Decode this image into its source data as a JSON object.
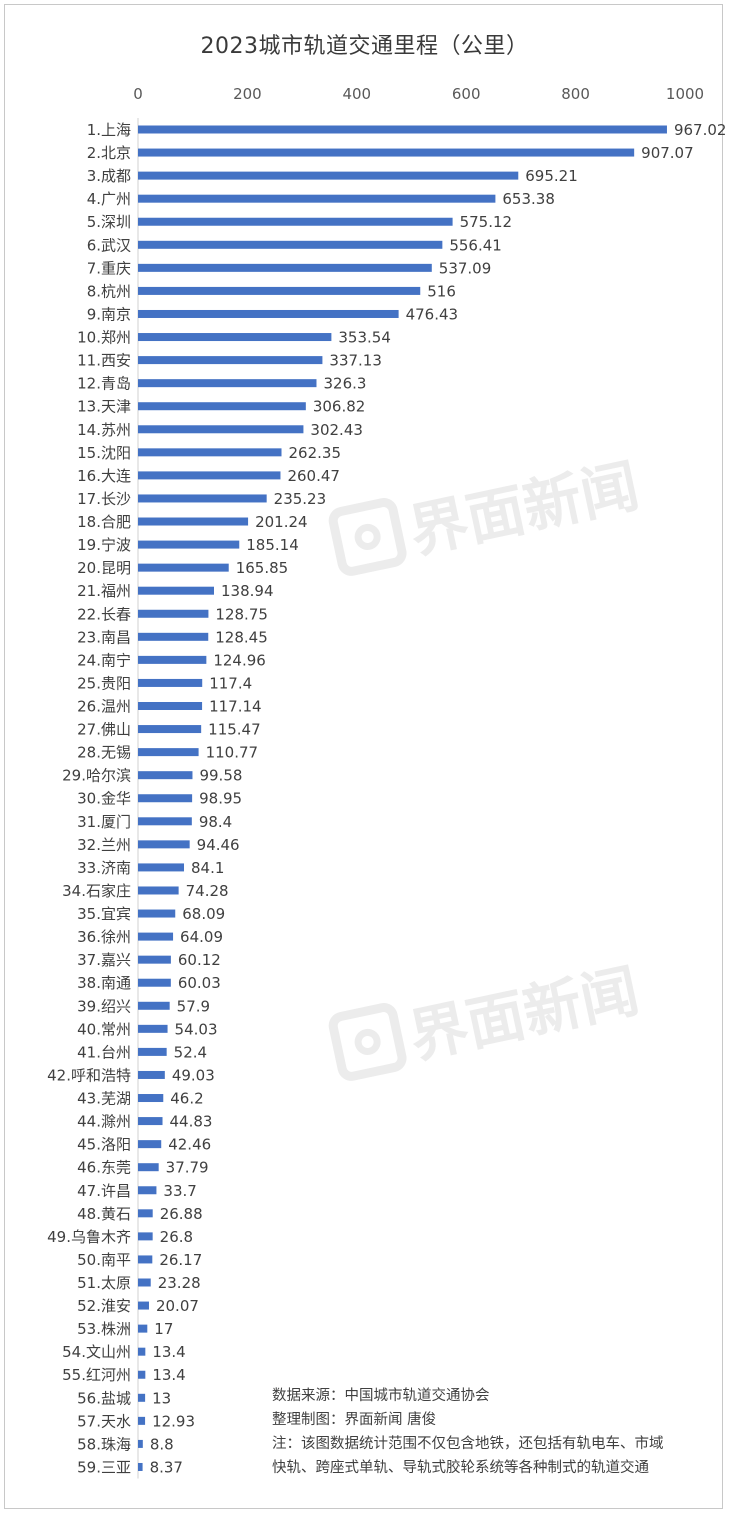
{
  "chart_data": {
    "type": "bar",
    "orientation": "horizontal",
    "title": "2023城市轨道交通里程（公里）",
    "xlim": [
      0,
      1000
    ],
    "xticks": [
      0,
      200,
      400,
      600,
      800,
      1000
    ],
    "axis_position": "top",
    "grid": false,
    "bar_color": "#4472C4",
    "categories": [
      "1.上海",
      "2.北京",
      "3.成都",
      "4.广州",
      "5.深圳",
      "6.武汉",
      "7.重庆",
      "8.杭州",
      "9.南京",
      "10.郑州",
      "11.西安",
      "12.青岛",
      "13.天津",
      "14.苏州",
      "15.沈阳",
      "16.大连",
      "17.长沙",
      "18.合肥",
      "19.宁波",
      "20.昆明",
      "21.福州",
      "22.长春",
      "23.南昌",
      "24.南宁",
      "25.贵阳",
      "26.温州",
      "27.佛山",
      "28.无锡",
      "29.哈尔滨",
      "30.金华",
      "31.厦门",
      "32.兰州",
      "33.济南",
      "34.石家庄",
      "35.宜宾",
      "36.徐州",
      "37.嘉兴",
      "38.南通",
      "39.绍兴",
      "40.常州",
      "41.台州",
      "42.呼和浩特",
      "43.芜湖",
      "44.滁州",
      "45.洛阳",
      "46.东莞",
      "47.许昌",
      "48.黄石",
      "49.乌鲁木齐",
      "50.南平",
      "51.太原",
      "52.淮安",
      "53.株洲",
      "54.文山州",
      "55.红河州",
      "56.盐城",
      "57.天水",
      "58.珠海",
      "59.三亚"
    ],
    "values": [
      967.02,
      907.07,
      695.21,
      653.38,
      575.12,
      556.41,
      537.09,
      516,
      476.43,
      353.54,
      337.13,
      326.3,
      306.82,
      302.43,
      262.35,
      260.47,
      235.23,
      201.24,
      185.14,
      165.85,
      138.94,
      128.75,
      128.45,
      124.96,
      117.4,
      117.14,
      115.47,
      110.77,
      99.58,
      98.95,
      98.4,
      94.46,
      84.1,
      74.28,
      68.09,
      64.09,
      60.12,
      60.03,
      57.9,
      54.03,
      52.4,
      49.03,
      46.2,
      44.83,
      42.46,
      37.79,
      33.7,
      26.88,
      26.8,
      26.17,
      23.28,
      20.07,
      17,
      13.4,
      13.4,
      13,
      12.93,
      8.8,
      8.37
    ],
    "data_labels": [
      "967.02",
      "907.07",
      "695.21",
      "653.38",
      "575.12",
      "556.41",
      "537.09",
      "516",
      "476.43",
      "353.54",
      "337.13",
      "326.3",
      "306.82",
      "302.43",
      "262.35",
      "260.47",
      "235.23",
      "201.24",
      "185.14",
      "165.85",
      "138.94",
      "128.75",
      "128.45",
      "124.96",
      "117.4",
      "117.14",
      "115.47",
      "110.77",
      "99.58",
      "98.95",
      "98.4",
      "94.46",
      "84.1",
      "74.28",
      "68.09",
      "64.09",
      "60.12",
      "60.03",
      "57.9",
      "54.03",
      "52.4",
      "49.03",
      "46.2",
      "44.83",
      "42.46",
      "37.79",
      "33.7",
      "26.88",
      "26.8",
      "26.17",
      "23.28",
      "20.07",
      "17",
      "13.4",
      "13.4",
      "13",
      "12.93",
      "8.8",
      "8.37"
    ]
  },
  "notes": {
    "source": "数据来源：中国城市轨道交通协会",
    "credit": "整理制图：界面新闻 唐俊",
    "note_line1": "注：该图数据统计范围不仅包含地铁，还包括有轨电车、市域",
    "note_line2": "快轨、跨座式单轨、导轨式胶轮系统等各种制式的轨道交通"
  },
  "watermark": {
    "text": "界面新闻"
  }
}
